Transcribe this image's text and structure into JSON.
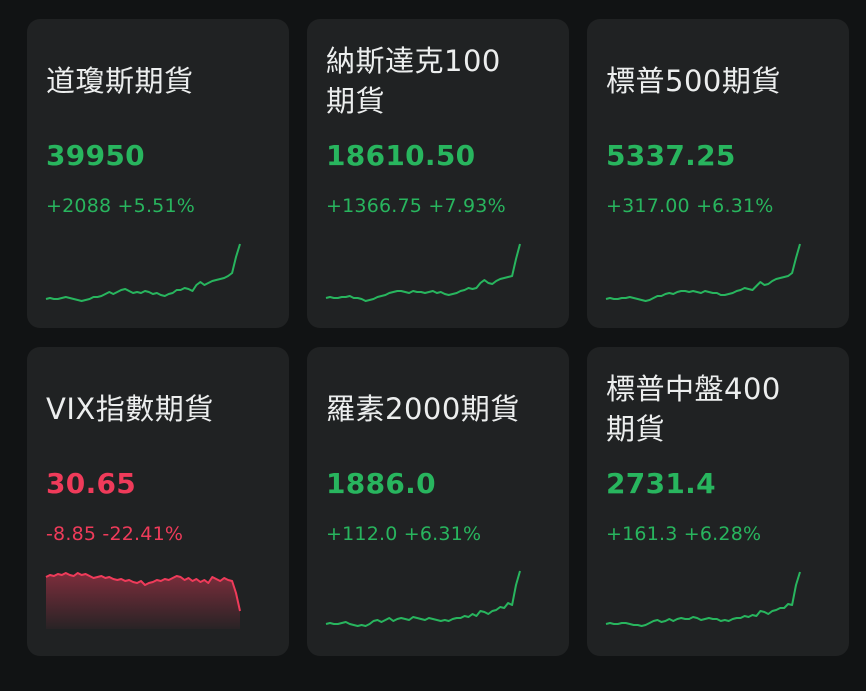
{
  "colors": {
    "up": "#28b55e",
    "down": "#ef3b5a",
    "card": "#202223",
    "background": "#111314"
  },
  "cards": [
    {
      "name": "道瓊斯期貨",
      "price": "39950",
      "change": "+2088",
      "change_pct": "+5.51%",
      "direction": "up",
      "sparkline": [
        64,
        63,
        64,
        64,
        63,
        62,
        63,
        64,
        65,
        66,
        65,
        64,
        62,
        62,
        61,
        59,
        57,
        59,
        57,
        55,
        54,
        56,
        58,
        57,
        58,
        56,
        57,
        59,
        58,
        60,
        61,
        59,
        58,
        55,
        55,
        53,
        54,
        56,
        50,
        47,
        50,
        48,
        46,
        45,
        44,
        43,
        41,
        38,
        22,
        9
      ]
    },
    {
      "name": "納斯達克100期貨",
      "price": "18610.50",
      "change": "+1366.75",
      "change_pct": "+7.93%",
      "direction": "up",
      "sparkline": [
        63,
        62,
        63,
        63,
        62,
        62,
        61,
        63,
        63,
        64,
        66,
        65,
        64,
        62,
        61,
        60,
        58,
        57,
        56,
        56,
        57,
        58,
        56,
        57,
        57,
        58,
        57,
        56,
        58,
        57,
        59,
        60,
        59,
        58,
        56,
        55,
        53,
        54,
        53,
        48,
        45,
        48,
        49,
        46,
        44,
        43,
        42,
        41,
        24,
        9
      ]
    },
    {
      "name": "標普500期貨",
      "price": "5337.25",
      "change": "+317.00",
      "change_pct": "+6.31%",
      "direction": "up",
      "sparkline": [
        64,
        63,
        64,
        64,
        63,
        63,
        62,
        63,
        64,
        65,
        66,
        65,
        63,
        61,
        61,
        59,
        58,
        59,
        57,
        56,
        56,
        57,
        56,
        57,
        58,
        56,
        57,
        58,
        58,
        60,
        60,
        59,
        58,
        56,
        55,
        53,
        54,
        55,
        51,
        47,
        50,
        49,
        46,
        44,
        43,
        42,
        41,
        38,
        23,
        9
      ]
    },
    {
      "name": "VIX指數期貨",
      "price": "30.65",
      "change": "-8.85",
      "change_pct": "-22.41%",
      "direction": "down",
      "sparkline": [
        14,
        12,
        13,
        11,
        12,
        10,
        12,
        13,
        10,
        12,
        11,
        13,
        15,
        14,
        13,
        15,
        14,
        16,
        17,
        16,
        18,
        17,
        19,
        20,
        18,
        22,
        20,
        19,
        17,
        18,
        16,
        17,
        15,
        13,
        14,
        17,
        15,
        18,
        16,
        19,
        17,
        20,
        14,
        16,
        18,
        15,
        17,
        18,
        30,
        48
      ]
    },
    {
      "name": "羅素2000期貨",
      "price": "1886.0",
      "change": "+112.0",
      "change_pct": "+6.31%",
      "direction": "up",
      "sparkline": [
        61,
        60,
        61,
        61,
        60,
        59,
        61,
        62,
        63,
        62,
        63,
        61,
        58,
        57,
        59,
        57,
        55,
        58,
        56,
        55,
        56,
        57,
        54,
        55,
        56,
        57,
        55,
        56,
        57,
        58,
        57,
        58,
        56,
        55,
        55,
        53,
        54,
        51,
        53,
        48,
        49,
        51,
        48,
        47,
        44,
        45,
        40,
        42,
        22,
        8
      ]
    },
    {
      "name": "標普中盤400期貨",
      "price": "2731.4",
      "change": "+161.3",
      "change_pct": "+6.28%",
      "direction": "up",
      "sparkline": [
        61,
        60,
        61,
        61,
        60,
        60,
        61,
        62,
        62,
        63,
        62,
        60,
        58,
        57,
        59,
        58,
        56,
        58,
        56,
        55,
        56,
        56,
        54,
        55,
        57,
        56,
        55,
        56,
        56,
        58,
        57,
        58,
        56,
        55,
        55,
        53,
        54,
        52,
        53,
        48,
        49,
        51,
        48,
        47,
        45,
        45,
        41,
        42,
        22,
        9
      ]
    }
  ]
}
